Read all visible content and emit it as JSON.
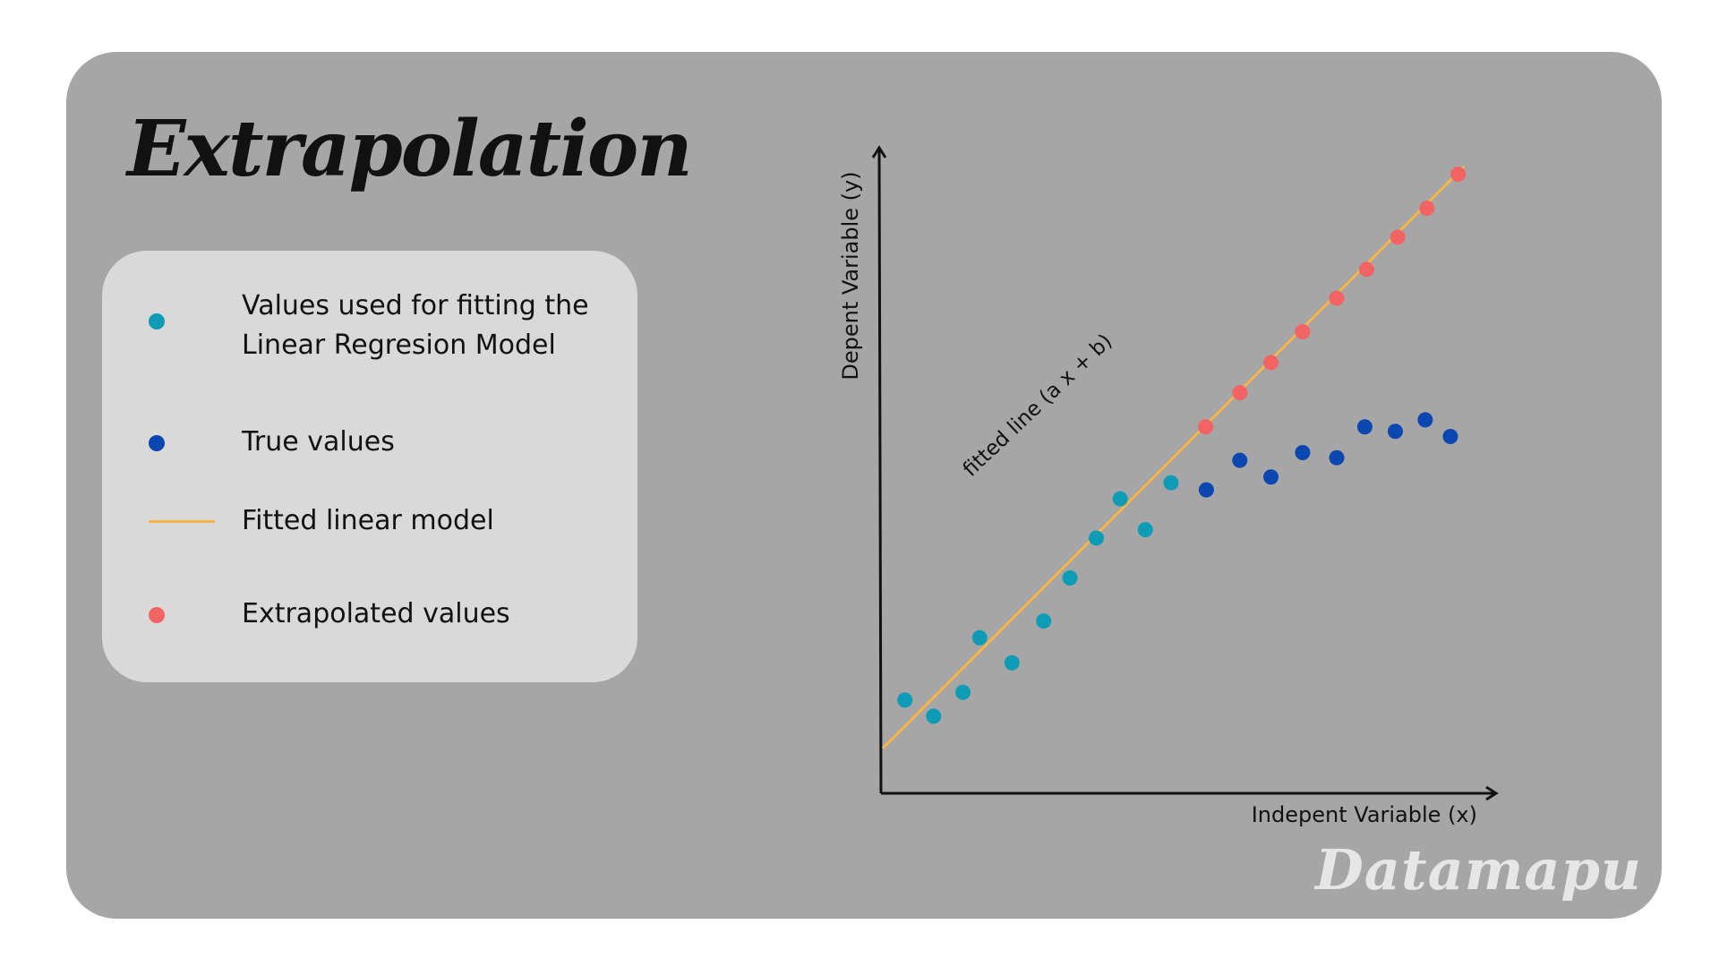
{
  "title": "Extrapolation",
  "legend": {
    "items": [
      {
        "lines": [
          "Values used for fitting the",
          "Linear Regresion Model"
        ],
        "marker": "dot",
        "color": "#0e9bb5"
      },
      {
        "lines": [
          "True values"
        ],
        "marker": "dot",
        "color": "#0a47b0"
      },
      {
        "lines": [
          "Fitted linear model"
        ],
        "marker": "line",
        "color": "#f7b548"
      },
      {
        "lines": [
          "Extrapolated values"
        ],
        "marker": "dot",
        "color": "#f26363"
      }
    ]
  },
  "chart_data": {
    "type": "scatter",
    "xlabel": "Indepent Variable (x)",
    "ylabel": "Depent Variable (y)",
    "xlim": [
      0,
      100
    ],
    "ylim": [
      0,
      100
    ],
    "annotation": "fitted line (a x + b)",
    "fitted_line": {
      "name": "Fitted linear model",
      "color": "#f7b548",
      "points": [
        [
          0.3,
          7.0
        ],
        [
          97.5,
          97.5
        ]
      ]
    },
    "series": [
      {
        "name": "Values used for fitting the Linear Regresion Model",
        "color": "#0e9bb5",
        "points": [
          [
            4,
            14.5
          ],
          [
            8.8,
            12
          ],
          [
            13.7,
            15.7
          ],
          [
            16.5,
            24.2
          ],
          [
            21.9,
            20.3
          ],
          [
            27.2,
            26.8
          ],
          [
            31.6,
            33.5
          ],
          [
            36,
            39.7
          ],
          [
            40,
            45.8
          ],
          [
            44.2,
            41
          ],
          [
            48.5,
            48.3
          ]
        ]
      },
      {
        "name": "True values",
        "color": "#0a47b0",
        "points": [
          [
            54.4,
            47.2
          ],
          [
            60,
            51.8
          ],
          [
            65.2,
            49.2
          ],
          [
            70.5,
            53
          ],
          [
            76.2,
            52.2
          ],
          [
            80.9,
            57
          ],
          [
            86,
            56.3
          ],
          [
            91,
            58.1
          ],
          [
            95.2,
            55.5
          ]
        ]
      },
      {
        "name": "Extrapolated values",
        "color": "#f26363",
        "points": [
          [
            54.3,
            57
          ],
          [
            60,
            62.3
          ],
          [
            65.2,
            67
          ],
          [
            70.5,
            71.8
          ],
          [
            76.2,
            77
          ],
          [
            81.2,
            81.5
          ],
          [
            86.4,
            86.5
          ],
          [
            91.3,
            91
          ],
          [
            96.5,
            96.3
          ]
        ]
      }
    ]
  },
  "watermark": "Datamapu"
}
